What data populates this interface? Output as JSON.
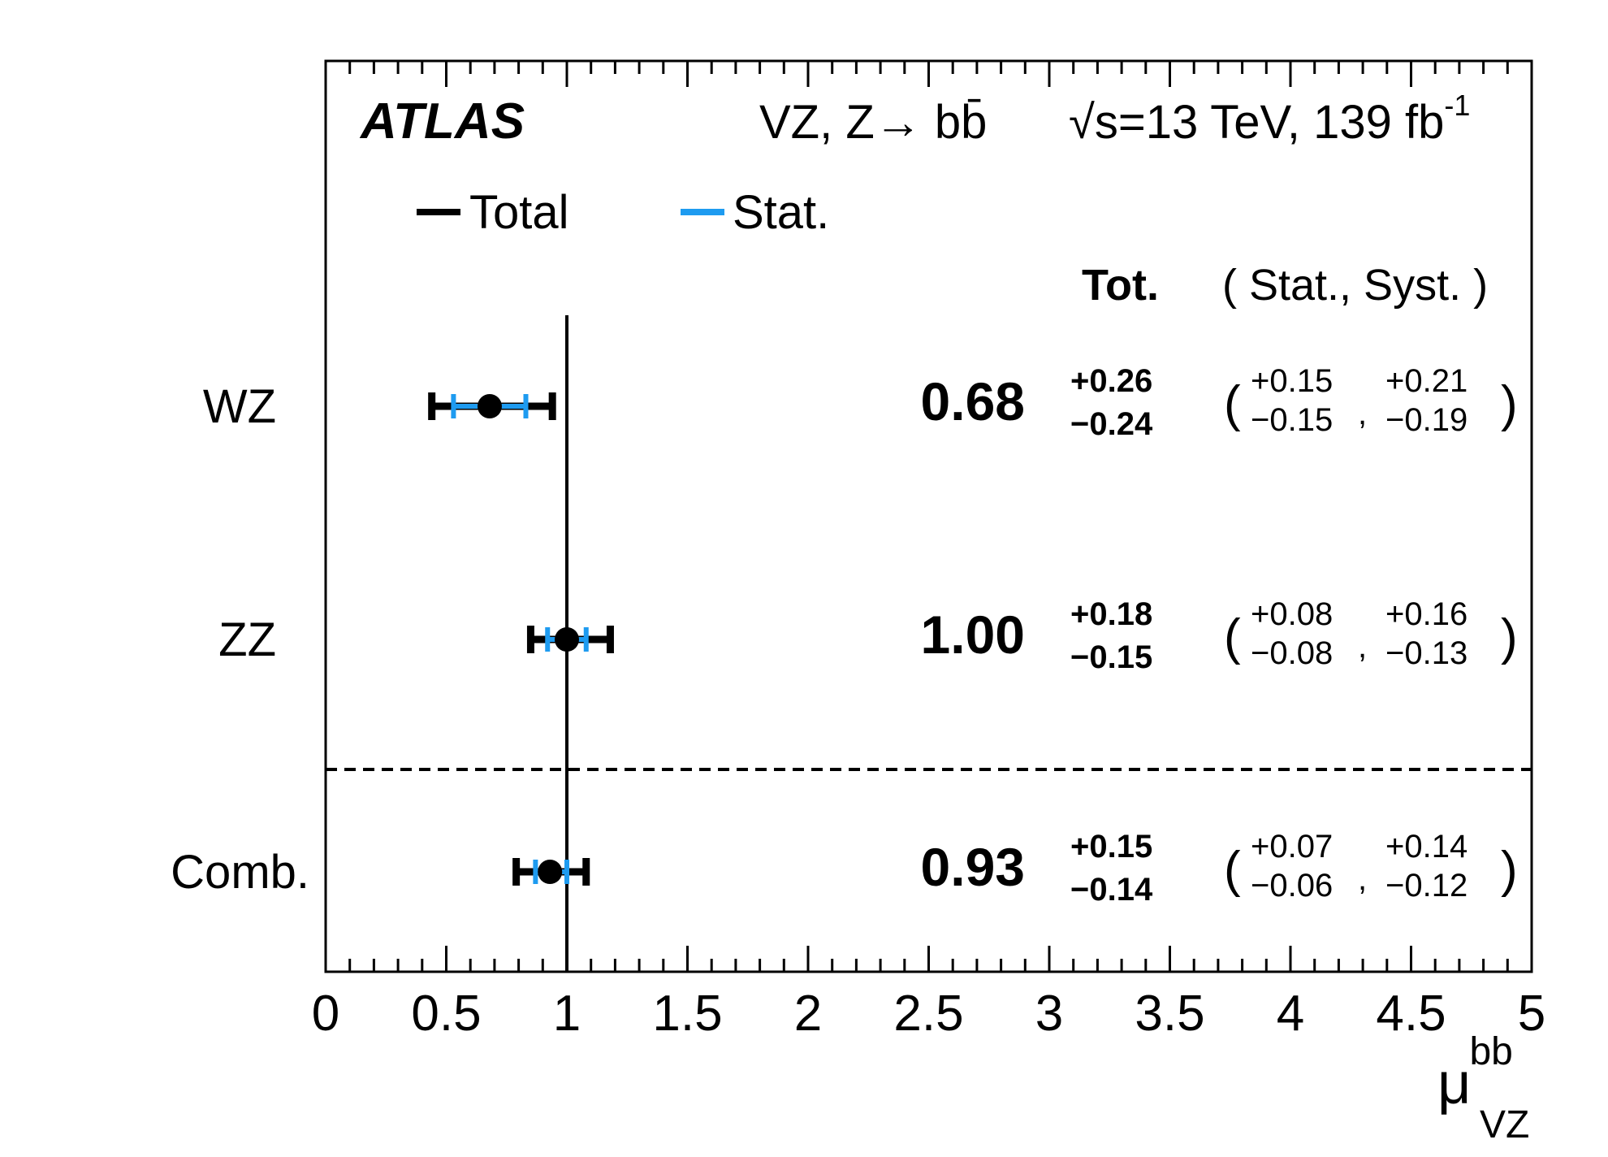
{
  "chart_data": {
    "type": "forest",
    "experiment": "ATLAS",
    "process_label": "VZ, Z→ bb̄",
    "energy_label": "√s=13 TeV, 139 fb",
    "energy_label_sup": "-1",
    "xlabel": "μ",
    "xlabel_sup": "bb",
    "xlabel_sub": "VZ",
    "xlim": [
      0,
      5
    ],
    "xticks": [
      "0",
      "0.5",
      "1",
      "1.5",
      "2",
      "2.5",
      "3",
      "3.5",
      "4",
      "4.5",
      "5"
    ],
    "reference_line": 1,
    "legend": [
      {
        "name": "Total",
        "color": "#000000"
      },
      {
        "name": "Stat.",
        "color": "#1e9bf0"
      }
    ],
    "column_headers": {
      "total": "Tot.",
      "breakdown": "( Stat., Syst. )"
    },
    "rows": [
      {
        "name": "WZ",
        "value": 0.68,
        "value_text": "0.68",
        "tot_up": 0.26,
        "tot_down": 0.24,
        "tot_up_text": "+0.26",
        "tot_down_text": "−0.24",
        "stat_up": 0.15,
        "stat_down": 0.15,
        "stat_up_text": "+0.15",
        "stat_down_text": "−0.15",
        "syst_up": 0.21,
        "syst_down": 0.19,
        "syst_up_text": "+0.21",
        "syst_down_text": "−0.19"
      },
      {
        "name": "ZZ",
        "value": 1.0,
        "value_text": "1.00",
        "tot_up": 0.18,
        "tot_down": 0.15,
        "tot_up_text": "+0.18",
        "tot_down_text": "−0.15",
        "stat_up": 0.08,
        "stat_down": 0.08,
        "stat_up_text": "+0.08",
        "stat_down_text": "−0.08",
        "syst_up": 0.16,
        "syst_down": 0.13,
        "syst_up_text": "+0.16",
        "syst_down_text": "−0.13"
      },
      {
        "name": "Comb.",
        "value": 0.93,
        "value_text": "0.93",
        "tot_up": 0.15,
        "tot_down": 0.14,
        "tot_up_text": "+0.15",
        "tot_down_text": "−0.14",
        "stat_up": 0.07,
        "stat_down": 0.06,
        "stat_up_text": "+0.07",
        "stat_down_text": "−0.06",
        "syst_up": 0.14,
        "syst_down": 0.12,
        "syst_up_text": "+0.14",
        "syst_down_text": "−0.12"
      }
    ],
    "separator_after_row": 1
  }
}
